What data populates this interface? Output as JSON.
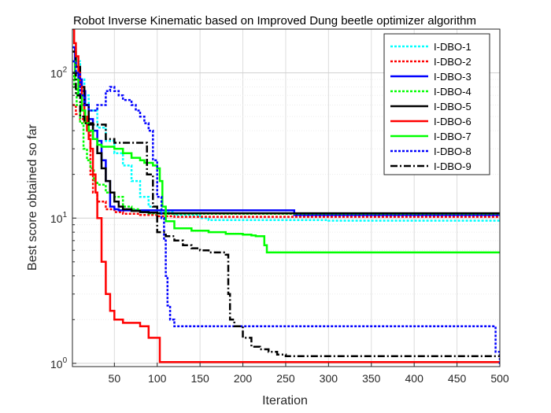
{
  "chart_data": {
    "type": "line",
    "title": "Robot Inverse Kinematic based on Improved Dung beetle optimizer algorithm",
    "xlabel": "Iteration",
    "ylabel": "Best score obtained so far",
    "xlim": [
      1,
      500
    ],
    "ylim": [
      0.95,
      200
    ],
    "yscale": "log",
    "xticks": [
      50,
      100,
      150,
      200,
      250,
      300,
      350,
      400,
      450,
      500
    ],
    "yticks": [
      1,
      10,
      100
    ],
    "ytick_labels": [
      "10",
      "10",
      "10"
    ],
    "ytick_exponents": [
      "0",
      "1",
      "2"
    ],
    "grid": true,
    "legend_position": "top-right",
    "series": [
      {
        "name": "I-DBO-1",
        "color": "#00ffff",
        "dash": "dotted",
        "x": [
          1,
          5,
          10,
          15,
          20,
          30,
          40,
          50,
          60,
          70,
          80,
          90,
          100,
          120,
          150,
          160,
          200,
          300,
          500
        ],
        "y": [
          150,
          120,
          90,
          70,
          55,
          42,
          34,
          28,
          23,
          18,
          14,
          12,
          11,
          10.5,
          10,
          9.7,
          9.7,
          9.6,
          9.6
        ]
      },
      {
        "name": "I-DBO-2",
        "color": "#ff0000",
        "dash": "dotted",
        "x": [
          1,
          5,
          10,
          15,
          20,
          22,
          25,
          30,
          40,
          50,
          60,
          80,
          100,
          120,
          200,
          500
        ],
        "y": [
          60,
          52,
          48,
          45,
          40,
          20,
          15,
          13,
          11.5,
          11,
          10.7,
          10.5,
          10.3,
          10.2,
          10.2,
          10.2
        ]
      },
      {
        "name": "I-DBO-3",
        "color": "#0000ff",
        "dash": "solid",
        "x": [
          1,
          4,
          8,
          12,
          16,
          20,
          25,
          30,
          35,
          40,
          45,
          50,
          55,
          60,
          70,
          100,
          150,
          200,
          250,
          260,
          500
        ],
        "y": [
          150,
          100,
          90,
          75,
          60,
          48,
          40,
          34,
          25,
          18,
          12,
          11.5,
          11.3,
          11.3,
          11.3,
          11.3,
          11.3,
          11.3,
          11.3,
          10.5,
          10.5
        ]
      },
      {
        "name": "I-DBO-4",
        "color": "#00ff00",
        "dash": "dotted",
        "x": [
          1,
          3,
          6,
          10,
          14,
          18,
          22,
          26,
          30,
          40,
          50,
          60,
          70,
          80,
          90,
          100,
          150,
          200,
          500
        ],
        "y": [
          100,
          80,
          60,
          45,
          30,
          25,
          22,
          18,
          17,
          15,
          14,
          12,
          11.5,
          11,
          10.8,
          10.7,
          10.7,
          10.7,
          10.7
        ]
      },
      {
        "name": "I-DBO-5",
        "color": "#000000",
        "dash": "solid",
        "x": [
          1,
          5,
          10,
          15,
          20,
          25,
          30,
          35,
          40,
          45,
          50,
          55,
          60,
          70,
          80,
          90,
          100,
          150,
          200,
          250,
          500
        ],
        "y": [
          140,
          110,
          80,
          60,
          45,
          35,
          28,
          22,
          18,
          15,
          13,
          12,
          11.5,
          11.2,
          11,
          10.9,
          10.8,
          10.8,
          10.8,
          10.8,
          10.8
        ]
      },
      {
        "name": "I-DBO-6",
        "color": "#ff0000",
        "dash": "solid",
        "x": [
          1,
          3,
          5,
          8,
          10,
          12,
          15,
          18,
          20,
          22,
          25,
          28,
          30,
          35,
          40,
          45,
          50,
          60,
          70,
          80,
          90,
          100,
          103,
          110,
          200,
          300,
          400,
          500
        ],
        "y": [
          200,
          160,
          130,
          100,
          80,
          60,
          50,
          40,
          35,
          30,
          20,
          15,
          10,
          5,
          3,
          2.3,
          2.0,
          1.9,
          1.9,
          1.8,
          1.5,
          1.5,
          1.02,
          1.02,
          1.02,
          1.02,
          1.02,
          1.02
        ]
      },
      {
        "name": "I-DBO-7",
        "color": "#00ff00",
        "dash": "solid",
        "x": [
          1,
          4,
          8,
          12,
          16,
          20,
          25,
          30,
          35,
          40,
          50,
          60,
          70,
          80,
          85,
          90,
          95,
          100,
          103,
          106,
          110,
          120,
          140,
          160,
          180,
          200,
          210,
          215,
          220,
          225,
          228,
          300,
          400,
          500
        ],
        "y": [
          120,
          90,
          70,
          55,
          45,
          40,
          35,
          32,
          31,
          31,
          30,
          28,
          26,
          25,
          24,
          24,
          23,
          22,
          18,
          12,
          9.5,
          8.5,
          8.2,
          8.0,
          7.8,
          7.7,
          7.6,
          7.5,
          7.5,
          6.5,
          5.8,
          5.8,
          5.8,
          5.8
        ]
      },
      {
        "name": "I-DBO-8",
        "color": "#0000ff",
        "dash": "dotted",
        "x": [
          1,
          5,
          10,
          15,
          20,
          30,
          40,
          45,
          50,
          55,
          60,
          70,
          75,
          80,
          85,
          90,
          95,
          100,
          105,
          108,
          110,
          112,
          115,
          120,
          125,
          130,
          150,
          200,
          300,
          400,
          450,
          490,
          495,
          500
        ],
        "y": [
          120,
          100,
          70,
          60,
          55,
          60,
          75,
          80,
          75,
          70,
          65,
          60,
          55,
          50,
          45,
          40,
          25,
          14,
          10,
          7,
          4,
          2.5,
          2.0,
          1.8,
          1.8,
          1.8,
          1.8,
          1.8,
          1.8,
          1.8,
          1.8,
          1.8,
          1.2,
          0.96
        ]
      },
      {
        "name": "I-DBO-9",
        "color": "#000000",
        "dash": "dashdot",
        "x": [
          1,
          5,
          10,
          15,
          20,
          25,
          30,
          40,
          50,
          60,
          70,
          80,
          88,
          95,
          100,
          110,
          120,
          130,
          140,
          150,
          160,
          170,
          180,
          183,
          185,
          190,
          200,
          210,
          220,
          230,
          240,
          250,
          300,
          400,
          500
        ],
        "y": [
          100,
          70,
          50,
          45,
          44,
          44,
          44,
          35,
          33,
          33,
          33,
          33,
          20,
          12,
          8,
          7.5,
          7,
          6.5,
          6.2,
          6,
          5.8,
          5.8,
          5.6,
          3.0,
          2.0,
          1.8,
          1.5,
          1.3,
          1.25,
          1.2,
          1.15,
          1.12,
          1.12,
          1.12,
          1.12
        ]
      }
    ]
  }
}
